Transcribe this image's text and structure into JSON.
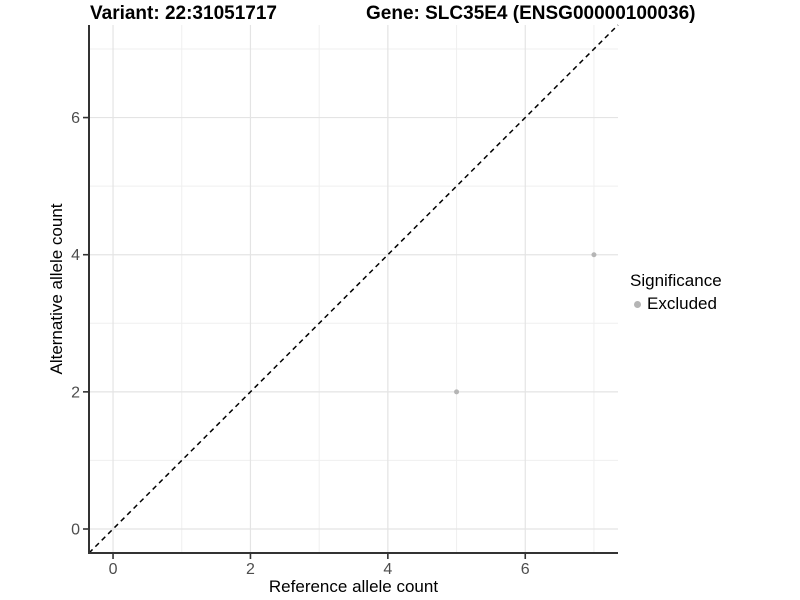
{
  "header": {
    "variant_title": "Variant: 22:31051717",
    "gene_title": "Gene: SLC35E4 (ENSG00000100036)"
  },
  "chart_data": {
    "type": "scatter",
    "xlabel": "Reference allele count",
    "ylabel": "Alternative allele count",
    "xlim": [
      -0.35,
      7.35
    ],
    "ylim": [
      -0.35,
      7.35
    ],
    "xticks": [
      0,
      2,
      4,
      6
    ],
    "yticks": [
      0,
      2,
      4,
      6
    ],
    "x_minor_gridlines": [
      1,
      3,
      5,
      7
    ],
    "y_minor_gridlines": [
      1,
      3,
      5,
      7
    ],
    "grid": "major and minor gridlines on white background",
    "identity_line": {
      "style": "dashed",
      "equation": "y = x"
    },
    "series": [
      {
        "name": "Excluded",
        "color": "#b5b5b5",
        "points": [
          [
            5,
            2
          ],
          [
            7,
            4
          ]
        ]
      }
    ],
    "legend": {
      "title": "Significance",
      "position": "right",
      "items": [
        {
          "label": "Excluded",
          "color": "#b5b5b5"
        }
      ]
    }
  },
  "colors": {
    "background": "#ffffff",
    "grid_major": "#e4e4e4",
    "grid_minor": "#efefef",
    "axis_line": "#333333",
    "tick_mark": "#333333",
    "tick_label": "#4d4d4d",
    "axis_title": "#000000",
    "identity_line": "#000000",
    "point": "#b5b5b5"
  }
}
